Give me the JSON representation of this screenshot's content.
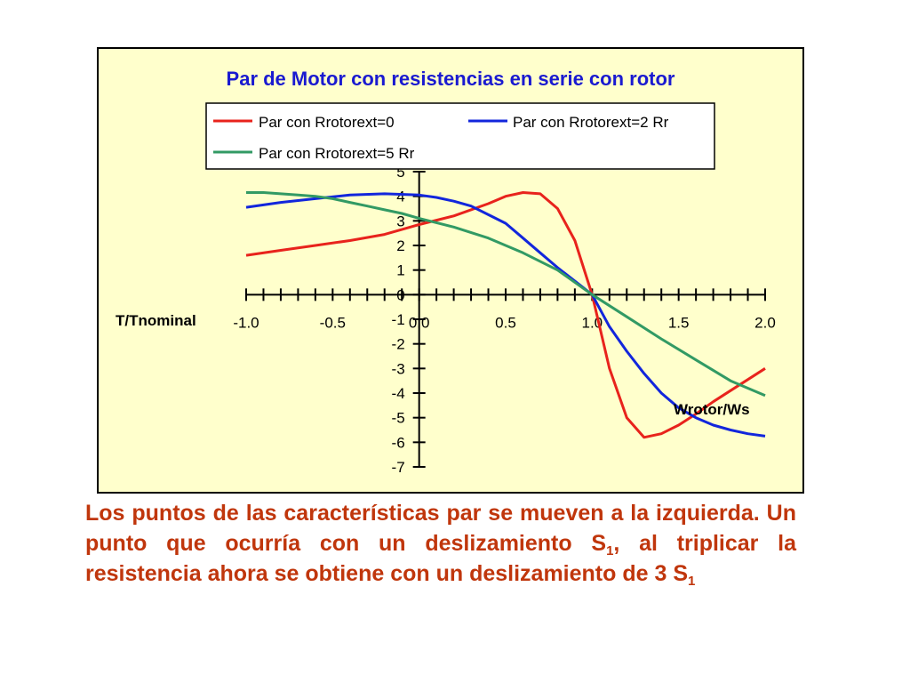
{
  "chart_data": {
    "type": "line",
    "title": "Par de Motor con resistencias en serie con rotor",
    "xlabel": "Wrotor/Ws",
    "ylabel": "T/Tnominal",
    "xlim": [
      -1.0,
      2.0
    ],
    "ylim": [
      -7,
      5
    ],
    "x_ticks": [
      "-1.0",
      "-0.5",
      "0.0",
      "0.5",
      "1.0",
      "1.5",
      "2.0"
    ],
    "y_ticks": [
      "5",
      "4",
      "3",
      "2",
      "1",
      "0",
      "-1",
      "-2",
      "-3",
      "-4",
      "-5",
      "-6",
      "-7"
    ],
    "legend_position": "top",
    "background": "#ffffcc",
    "series": [
      {
        "name": "Par con Rrotorext=0",
        "color": "#e8231c",
        "points": [
          [
            -1.0,
            1.6
          ],
          [
            -0.8,
            1.8
          ],
          [
            -0.6,
            2.0
          ],
          [
            -0.4,
            2.2
          ],
          [
            -0.2,
            2.45
          ],
          [
            0.0,
            2.85
          ],
          [
            0.2,
            3.2
          ],
          [
            0.4,
            3.7
          ],
          [
            0.5,
            4.0
          ],
          [
            0.6,
            4.15
          ],
          [
            0.7,
            4.1
          ],
          [
            0.8,
            3.5
          ],
          [
            0.9,
            2.2
          ],
          [
            1.0,
            0.0
          ],
          [
            1.1,
            -3.0
          ],
          [
            1.2,
            -5.0
          ],
          [
            1.3,
            -5.8
          ],
          [
            1.4,
            -5.65
          ],
          [
            1.5,
            -5.3
          ],
          [
            1.6,
            -4.85
          ],
          [
            1.7,
            -4.35
          ],
          [
            1.8,
            -3.9
          ],
          [
            1.9,
            -3.45
          ],
          [
            2.0,
            -3.0
          ]
        ]
      },
      {
        "name": "Par con Rrotorext=2 Rr",
        "color": "#1226dc",
        "points": [
          [
            -1.0,
            3.55
          ],
          [
            -0.8,
            3.75
          ],
          [
            -0.6,
            3.9
          ],
          [
            -0.4,
            4.05
          ],
          [
            -0.2,
            4.1
          ],
          [
            0.0,
            4.05
          ],
          [
            0.1,
            3.95
          ],
          [
            0.2,
            3.8
          ],
          [
            0.3,
            3.6
          ],
          [
            0.4,
            3.25
          ],
          [
            0.5,
            2.9
          ],
          [
            0.6,
            2.3
          ],
          [
            0.7,
            1.7
          ],
          [
            0.8,
            1.1
          ],
          [
            0.9,
            0.55
          ],
          [
            1.0,
            0.0
          ],
          [
            1.1,
            -1.3
          ],
          [
            1.2,
            -2.3
          ],
          [
            1.3,
            -3.2
          ],
          [
            1.4,
            -4.0
          ],
          [
            1.5,
            -4.6
          ],
          [
            1.6,
            -5.0
          ],
          [
            1.7,
            -5.3
          ],
          [
            1.8,
            -5.5
          ],
          [
            1.9,
            -5.65
          ],
          [
            2.0,
            -5.75
          ]
        ]
      },
      {
        "name": "Par con Rrotorext=5 Rr",
        "color": "#329a64",
        "points": [
          [
            -1.0,
            4.15
          ],
          [
            -0.9,
            4.15
          ],
          [
            -0.8,
            4.1
          ],
          [
            -0.7,
            4.05
          ],
          [
            -0.6,
            4.0
          ],
          [
            -0.5,
            3.9
          ],
          [
            -0.4,
            3.75
          ],
          [
            -0.3,
            3.6
          ],
          [
            -0.2,
            3.45
          ],
          [
            -0.1,
            3.3
          ],
          [
            0.0,
            3.1
          ],
          [
            0.2,
            2.75
          ],
          [
            0.4,
            2.3
          ],
          [
            0.6,
            1.7
          ],
          [
            0.8,
            1.0
          ],
          [
            1.0,
            0.0
          ],
          [
            1.2,
            -0.9
          ],
          [
            1.4,
            -1.8
          ],
          [
            1.6,
            -2.65
          ],
          [
            1.8,
            -3.5
          ],
          [
            2.0,
            -4.1
          ]
        ]
      }
    ]
  },
  "caption": {
    "part1": "Los puntos de las características par se mueven a la izquierda. Un punto que ocurría con un deslizamiento S",
    "sub1": "1",
    "part2": ", al triplicar la resistencia ahora se obtiene con un deslizamiento de 3 S",
    "sub2": "1"
  }
}
